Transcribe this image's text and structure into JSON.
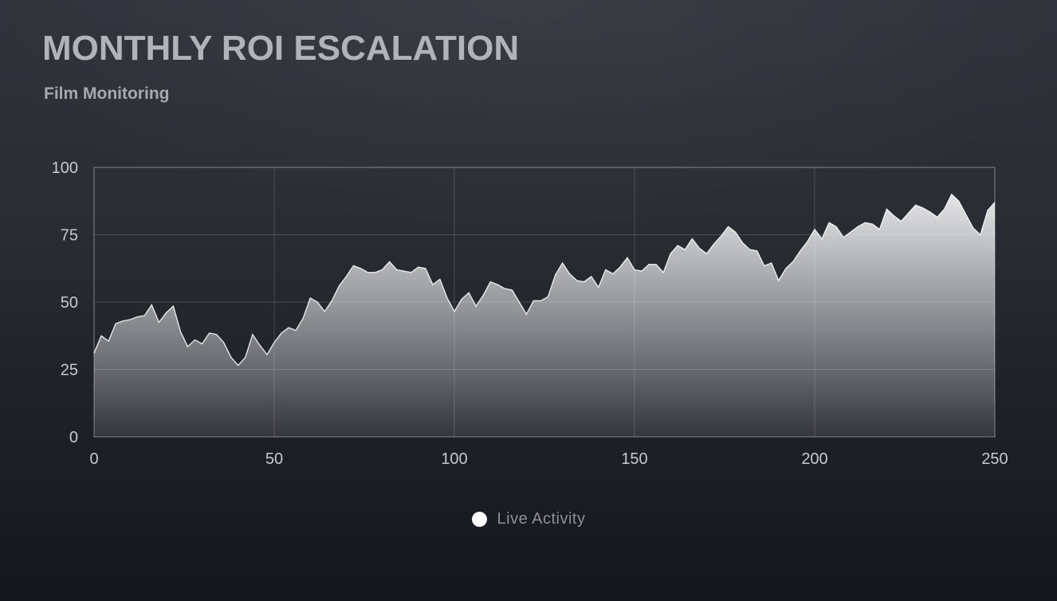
{
  "header": {
    "title": "MONTHLY ROI ESCALATION",
    "subtitle": "Film Monitoring"
  },
  "legend": {
    "label": "Live Activity"
  },
  "colors": {
    "title": "#b0b3b8",
    "subtitle": "#a7a9ae",
    "tick_label": "#c7c9cd",
    "gridline": "rgba(255,255,255,0.16)",
    "plot_border": "rgba(255,255,255,0.26)",
    "legend_text": "#8e9095",
    "legend_marker": "#ffffff",
    "series_line": "#ffffff",
    "area_fill_top": "#ffffff",
    "background_top": "#30323b",
    "background_bottom": "#15161d"
  },
  "chart_data": {
    "type": "area",
    "title": "MONTHLY ROI ESCALATION",
    "subtitle": "Film Monitoring",
    "series": [
      {
        "name": "Live Activity",
        "x_start": 0,
        "x_step": 2,
        "values": [
          31,
          37.5,
          35.5,
          42,
          43,
          43.5,
          44.5,
          45,
          49,
          42.5,
          46,
          48.5,
          39,
          33.5,
          36,
          34.5,
          38.5,
          38,
          35,
          29.5,
          26.5,
          29.5,
          38,
          34,
          30.5,
          35,
          38.5,
          40.5,
          39.5,
          44,
          51.5,
          50,
          46.5,
          50.5,
          56,
          59.5,
          63.5,
          62.5,
          61,
          61,
          62,
          65,
          62,
          61.5,
          61,
          63,
          62.5,
          56.5,
          58.5,
          51.5,
          46.5,
          51,
          53.5,
          48.5,
          52.5,
          57.5,
          56.5,
          55,
          54.5,
          50,
          45.5,
          50.5,
          50.5,
          52,
          60,
          64.5,
          60.5,
          58,
          57.5,
          59.5,
          55.5,
          62,
          60.5,
          63,
          66.5,
          62,
          61.5,
          64,
          64,
          61,
          68,
          71,
          69.5,
          73.5,
          70,
          68,
          71.5,
          74.5,
          78,
          76,
          72,
          69.5,
          69,
          63.5,
          64.5,
          58,
          62.5,
          65,
          69,
          72.5,
          77,
          73.5,
          79.5,
          78,
          74,
          76,
          78,
          79.5,
          79,
          77,
          84.5,
          82,
          80,
          83,
          86,
          85,
          83.5,
          81.5,
          84.5,
          90,
          87.5,
          82.5,
          77.5,
          75,
          84,
          87
        ]
      }
    ],
    "xlim": [
      0,
      250
    ],
    "ylim": [
      0,
      100
    ],
    "x_ticks": [
      0,
      50,
      100,
      150,
      200,
      250
    ],
    "y_ticks": [
      0,
      25,
      50,
      75,
      100
    ],
    "grid": true,
    "legend_position": "bottom",
    "xlabel": "",
    "ylabel": ""
  }
}
